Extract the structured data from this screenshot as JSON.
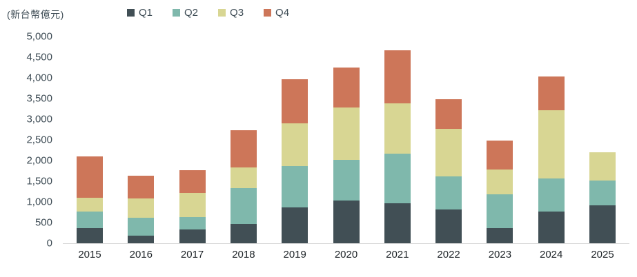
{
  "chart": {
    "unit_label": "(新台幣億元)"
  },
  "chart_data": {
    "type": "bar",
    "stacked": true,
    "title": "",
    "unit_label": "(新台幣億元)",
    "xlabel": "",
    "ylabel": "新台幣億元",
    "categories": [
      "2015",
      "2016",
      "2017",
      "2018",
      "2019",
      "2020",
      "2021",
      "2022",
      "2023",
      "2024",
      "2025"
    ],
    "series": [
      {
        "name": "Q1",
        "color": "#414f55",
        "values": [
          360,
          190,
          340,
          470,
          860,
          1030,
          970,
          820,
          360,
          770,
          920
        ]
      },
      {
        "name": "Q2",
        "color": "#7fb8ac",
        "values": [
          410,
          430,
          300,
          860,
          1010,
          980,
          1190,
          800,
          820,
          790,
          590
        ]
      },
      {
        "name": "Q3",
        "color": "#d8d693",
        "values": [
          330,
          470,
          570,
          510,
          1030,
          1270,
          1220,
          1140,
          600,
          1660,
          690
        ]
      },
      {
        "name": "Q4",
        "color": "#cd7659",
        "values": [
          1000,
          540,
          560,
          900,
          1060,
          970,
          1280,
          720,
          710,
          810,
          0
        ]
      }
    ],
    "totals_approx": [
      2100,
      1630,
      1770,
      2740,
      3960,
      4250,
      4660,
      3480,
      2490,
      4030,
      2200
    ],
    "ylim": [
      0,
      5000
    ],
    "ytick_interval": 500,
    "yticks": [
      {
        "value": 0,
        "label": "0"
      },
      {
        "value": 500,
        "label": "500"
      },
      {
        "value": 1000,
        "label": "1,000"
      },
      {
        "value": 1500,
        "label": "1,500"
      },
      {
        "value": 2000,
        "label": "2,000"
      },
      {
        "value": 2500,
        "label": "2,500"
      },
      {
        "value": 3000,
        "label": "3,000"
      },
      {
        "value": 3500,
        "label": "3,500"
      },
      {
        "value": 4000,
        "label": "4,000"
      },
      {
        "value": 4500,
        "label": "4,500"
      },
      {
        "value": 5000,
        "label": "5,000"
      }
    ],
    "legend_position": "top",
    "grid": false,
    "colors": {
      "axis_text": "#3e4c55",
      "x_tick_text": "#20262a",
      "baseline": "#d8d8d8",
      "background": "#ffffff"
    }
  }
}
